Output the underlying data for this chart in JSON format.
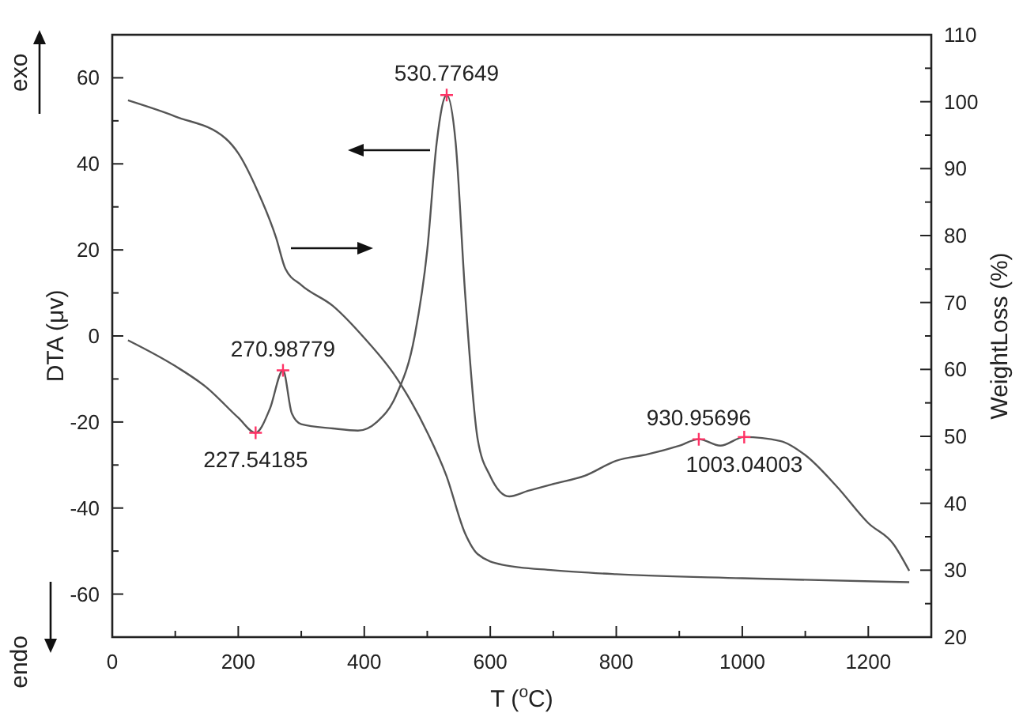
{
  "chart_data": {
    "type": "line",
    "xlabel": "T ($^{o}$C)",
    "ylabel": "DTA (μv)",
    "y2label": "WeightLoss (%)",
    "xlim": [
      0,
      1300
    ],
    "xticks": [
      0,
      {
        "value": 100,
        "label": null
      },
      200,
      {
        "value": 300,
        "label": null
      },
      400,
      {
        "value": 500,
        "label": null
      },
      600,
      {
        "value": 700,
        "label": null
      },
      800,
      {
        "value": 900,
        "label": null
      },
      1000,
      {
        "value": 1100,
        "label": null
      },
      1200
    ],
    "ylim": [
      -70,
      70
    ],
    "yticks": [
      {
        "value": -70,
        "label": null
      },
      -60,
      {
        "value": -50,
        "label": null
      },
      -40,
      {
        "value": -30,
        "label": null
      },
      -20,
      {
        "value": -10,
        "label": null
      },
      0,
      {
        "value": 10,
        "label": null
      },
      20,
      {
        "value": 30,
        "label": null
      },
      40,
      {
        "value": 50,
        "label": null
      },
      60,
      {
        "value": 70,
        "label": null
      }
    ],
    "y2lim": [
      20,
      110
    ],
    "y2ticks": [
      20,
      {
        "value": 25,
        "label": null
      },
      30,
      {
        "value": 35,
        "label": null
      },
      40,
      {
        "value": 45,
        "label": null
      },
      50,
      {
        "value": 55,
        "label": null
      },
      60,
      {
        "value": 65,
        "label": null
      },
      70,
      {
        "value": 75,
        "label": null
      },
      80,
      {
        "value": 85,
        "label": null
      },
      90,
      {
        "value": 95,
        "label": null
      },
      100,
      {
        "value": 105,
        "label": null
      },
      110
    ],
    "grid": false,
    "line_style": "solid",
    "series": [
      {
        "color": "#555555",
        "x": [
          25,
          100,
          150,
          200,
          227.5,
          250,
          271,
          285,
          300,
          350,
          390,
          420,
          450,
          480,
          500,
          515,
          530.8,
          545,
          560,
          580,
          600,
          630,
          660,
          700,
          750,
          800,
          850,
          900,
          931,
          965,
          1003,
          1060,
          1100,
          1150,
          1200,
          1240,
          1265
        ],
        "values": [
          -1,
          -7,
          -12,
          -19,
          -22.5,
          -17,
          -8,
          -18,
          -20.5,
          -21.5,
          -22,
          -20,
          -14,
          0,
          20,
          45,
          56,
          45,
          10,
          -24,
          -32.6,
          -37.3,
          -36,
          -34.4,
          -32.5,
          -29,
          -27.5,
          -25.5,
          -24,
          -25.5,
          -23.5,
          -24.4,
          -27.7,
          -35,
          -43.5,
          -48.4,
          -54.6
        ]
      },
      {
        "color": "#555555",
        "axis": "y2",
        "x": [
          25,
          100,
          180,
          200,
          230,
          260,
          275,
          300,
          350,
          400,
          450,
          500,
          530,
          560,
          580,
          620,
          700,
          800,
          1000,
          1265
        ],
        "values": [
          100.2,
          97.8,
          94.5,
          92.3,
          86.8,
          79.7,
          75,
          72.6,
          69.5,
          64.7,
          58.9,
          50.6,
          44.2,
          35.5,
          32.4,
          30.8,
          30,
          29.4,
          28.8,
          28.2
        ]
      },
      {
        "type": "scatter",
        "marker": "cross",
        "color": "#ff3366",
        "x": [
          227.54185,
          270.98779,
          530.77649,
          930.95696,
          1003.04003
        ],
        "values": [
          -22.5,
          -8,
          56,
          -24,
          -23.5
        ]
      }
    ],
    "annotations": [
      {
        "text": "227.54185",
        "x": 227.54185,
        "y": -22.5
      },
      {
        "text": "270.98779",
        "x": 270.98779,
        "y": -8
      },
      {
        "text": "530.77649",
        "x": 530.77649,
        "y": 56
      },
      {
        "text": "930.95696",
        "x": 930.95696,
        "y": -24
      },
      {
        "text": "1003.04003",
        "x": 1003.04003,
        "y": -23.5
      },
      "exo",
      "endo"
    ]
  }
}
